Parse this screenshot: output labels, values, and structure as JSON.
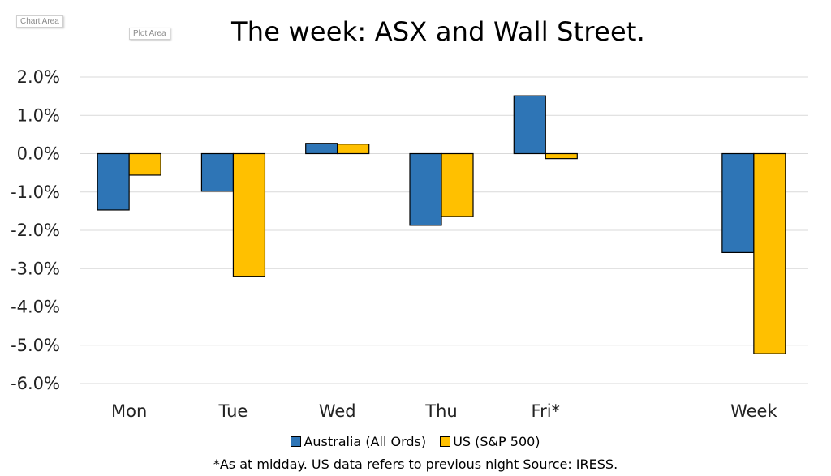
{
  "labels": {
    "chart_area": "Chart Area",
    "plot_area": "Plot Area"
  },
  "colors": {
    "australia": "#2e75b6",
    "us": "#ffc000",
    "grid": "#d9d9d9"
  },
  "chart_data": {
    "type": "bar",
    "title": "The week:  ASX and Wall Street.",
    "xlabel": "",
    "ylabel": "",
    "categories": [
      "Mon",
      "Tue",
      "Wed",
      "Thu",
      "Fri*",
      "",
      "Week"
    ],
    "series": [
      {
        "name": "Australia (All Ords)",
        "values": [
          -1.47,
          -0.98,
          0.27,
          -1.87,
          1.51,
          null,
          -2.58
        ]
      },
      {
        "name": "US (S&P 500)",
        "values": [
          -0.56,
          -3.2,
          0.25,
          -1.64,
          -0.13,
          null,
          -5.22
        ]
      }
    ],
    "ylim": [
      -6,
      2
    ],
    "yticks": [
      "2.0%",
      "1.0%",
      "0.0%",
      "-1.0%",
      "-2.0%",
      "-3.0%",
      "-4.0%",
      "-5.0%",
      "-6.0%"
    ],
    "grid": true,
    "legend": "bottom",
    "footnote": "*As at midday. US data refers to previous night  Source:  IRESS."
  }
}
